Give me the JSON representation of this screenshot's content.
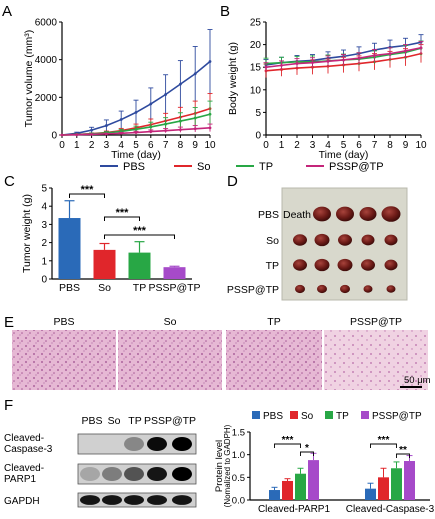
{
  "panels": {
    "A": "A",
    "B": "B",
    "C": "C",
    "D": "D",
    "E": "E",
    "F": "F"
  },
  "legend_top": {
    "items": [
      {
        "name": "PBS",
        "color": "#2e4a9e"
      },
      {
        "name": "So",
        "color": "#e0262b"
      },
      {
        "name": "TP",
        "color": "#28a745"
      },
      {
        "name": "PSSP@TP",
        "color": "#c4257a"
      }
    ]
  },
  "photo_d": {
    "rows": [
      "PBS",
      "So",
      "TP",
      "PSSP@TP"
    ],
    "death_label": "Death"
  },
  "histology_e": {
    "labels": [
      "PBS",
      "So",
      "TP",
      "PSSP@TP"
    ],
    "scalebar": "50 μm"
  },
  "blot_f": {
    "lanes": [
      "PBS",
      "So",
      "TP",
      "PSSP@TP"
    ],
    "bands": [
      "Cleaved-\nCaspase-3",
      "Cleaved-\nPARP1",
      "GAPDH"
    ],
    "band_line1": [
      "Cleaved-",
      "Cleaved-",
      "GAPDH"
    ],
    "band_line2": [
      "Caspase-3",
      "PARP1",
      ""
    ]
  },
  "chart_data": [
    {
      "panel": "A",
      "type": "line",
      "xlabel": "Time (day)",
      "ylabel": "Tumor volume (mm³)",
      "x": [
        0,
        1,
        2,
        3,
        4,
        5,
        6,
        7,
        8,
        9,
        10
      ],
      "xlim": [
        0,
        10
      ],
      "ylim": [
        0,
        6000
      ],
      "yticks": [
        0,
        2000,
        4000,
        6000
      ],
      "series": [
        {
          "name": "PBS",
          "values": [
            0,
            90,
            260,
            500,
            820,
            1200,
            1650,
            2150,
            2700,
            3250,
            3900
          ],
          "err": [
            0,
            60,
            150,
            300,
            450,
            650,
            850,
            1050,
            1250,
            1450,
            1700
          ]
        },
        {
          "name": "So",
          "values": [
            0,
            30,
            70,
            130,
            230,
            380,
            550,
            750,
            950,
            1150,
            1400
          ],
          "err": [
            0,
            20,
            40,
            80,
            120,
            200,
            300,
            400,
            520,
            650,
            800
          ]
        },
        {
          "name": "TP",
          "values": [
            0,
            25,
            60,
            110,
            190,
            300,
            430,
            580,
            740,
            900,
            1100
          ],
          "err": [
            0,
            20,
            40,
            70,
            110,
            170,
            250,
            340,
            440,
            560,
            700
          ]
        },
        {
          "name": "PSSP@TP",
          "values": [
            0,
            15,
            35,
            60,
            90,
            130,
            180,
            230,
            280,
            330,
            380
          ],
          "err": [
            0,
            10,
            20,
            30,
            50,
            70,
            90,
            110,
            140,
            170,
            200
          ]
        }
      ]
    },
    {
      "panel": "B",
      "type": "line",
      "xlabel": "Time (day)",
      "ylabel": "Body weight (g)",
      "x": [
        0,
        1,
        2,
        3,
        4,
        5,
        6,
        7,
        8,
        9,
        10
      ],
      "xlim": [
        0,
        10
      ],
      "ylim": [
        0,
        25
      ],
      "yticks": [
        0,
        5,
        10,
        15,
        20,
        25
      ],
      "series": [
        {
          "name": "PBS",
          "values": [
            15.5,
            16.0,
            16.3,
            16.5,
            17.0,
            17.4,
            18.0,
            18.8,
            19.4,
            19.8,
            20.5
          ],
          "err": [
            1.2,
            1.2,
            1.3,
            1.3,
            1.4,
            1.4,
            1.5,
            1.5,
            1.6,
            1.6,
            1.7
          ]
        },
        {
          "name": "So",
          "values": [
            14.2,
            14.5,
            14.8,
            15.0,
            15.2,
            15.5,
            15.8,
            16.2,
            16.7,
            17.2,
            18.0
          ],
          "err": [
            1.5,
            1.5,
            1.5,
            1.6,
            1.6,
            1.7,
            1.7,
            1.8,
            1.8,
            1.9,
            2.0
          ]
        },
        {
          "name": "TP",
          "values": [
            15.8,
            16.0,
            16.2,
            16.2,
            16.4,
            16.6,
            16.8,
            17.2,
            17.8,
            18.3,
            19.2
          ],
          "err": [
            1.2,
            1.2,
            1.2,
            1.3,
            1.3,
            1.3,
            1.4,
            1.4,
            1.5,
            1.5,
            1.6
          ]
        },
        {
          "name": "PSSP@TP",
          "values": [
            15.0,
            15.4,
            15.8,
            16.0,
            16.3,
            16.6,
            17.0,
            17.6,
            18.0,
            18.6,
            19.3
          ],
          "err": [
            1.0,
            1.0,
            1.1,
            1.1,
            1.2,
            1.2,
            1.2,
            1.3,
            1.3,
            1.4,
            1.4
          ]
        }
      ]
    },
    {
      "panel": "C",
      "type": "bar",
      "ylabel": "Tumor weight (g)",
      "categories": [
        "PBS",
        "So",
        "TP",
        "PSSP@TP"
      ],
      "values": [
        3.35,
        1.6,
        1.45,
        0.65
      ],
      "err": [
        0.95,
        0.35,
        0.6,
        0.05
      ],
      "colors": [
        "#2a6ab8",
        "#e0262b",
        "#28a745",
        "#a64ac9"
      ],
      "ylim": [
        0,
        5
      ],
      "yticks": [
        0,
        1,
        2,
        3,
        4,
        5
      ],
      "significance": [
        {
          "from": 0,
          "to": 1,
          "label": "***"
        },
        {
          "from": 1,
          "to": 2,
          "label": "***"
        },
        {
          "from": 1,
          "to": 3,
          "label": "***"
        }
      ]
    },
    {
      "panel": "F",
      "type": "bar",
      "ylabel": "Protein level",
      "ylabel2": "(Nomalized to GADPH)",
      "categories": [
        "Cleaved-PARP1",
        "Cleaved-Caspase-3"
      ],
      "series": [
        {
          "name": "PBS",
          "color": "#2a6ab8",
          "values": [
            0.22,
            0.25
          ],
          "err": [
            0.06,
            0.12
          ]
        },
        {
          "name": "So",
          "color": "#e0262b",
          "values": [
            0.42,
            0.5
          ],
          "err": [
            0.05,
            0.2
          ]
        },
        {
          "name": "TP",
          "color": "#28a745",
          "values": [
            0.58,
            0.7
          ],
          "err": [
            0.12,
            0.14
          ]
        },
        {
          "name": "PSSP@TP",
          "color": "#a64ac9",
          "values": [
            0.88,
            0.86
          ],
          "err": [
            0.15,
            0.12
          ]
        }
      ],
      "ylim": [
        0,
        1.5
      ],
      "yticks": [
        0.0,
        0.5,
        1.0,
        1.5
      ],
      "yticklabels": [
        "0.0",
        "0.5",
        "1.0",
        "1.5"
      ],
      "significance": [
        {
          "group": 0,
          "from": 0,
          "to": 2,
          "label": "***"
        },
        {
          "group": 0,
          "from": 2,
          "to": 3,
          "label": "*"
        },
        {
          "group": 1,
          "from": 0,
          "to": 2,
          "label": "***"
        },
        {
          "group": 1,
          "from": 2,
          "to": 3,
          "label": "**"
        }
      ]
    }
  ]
}
